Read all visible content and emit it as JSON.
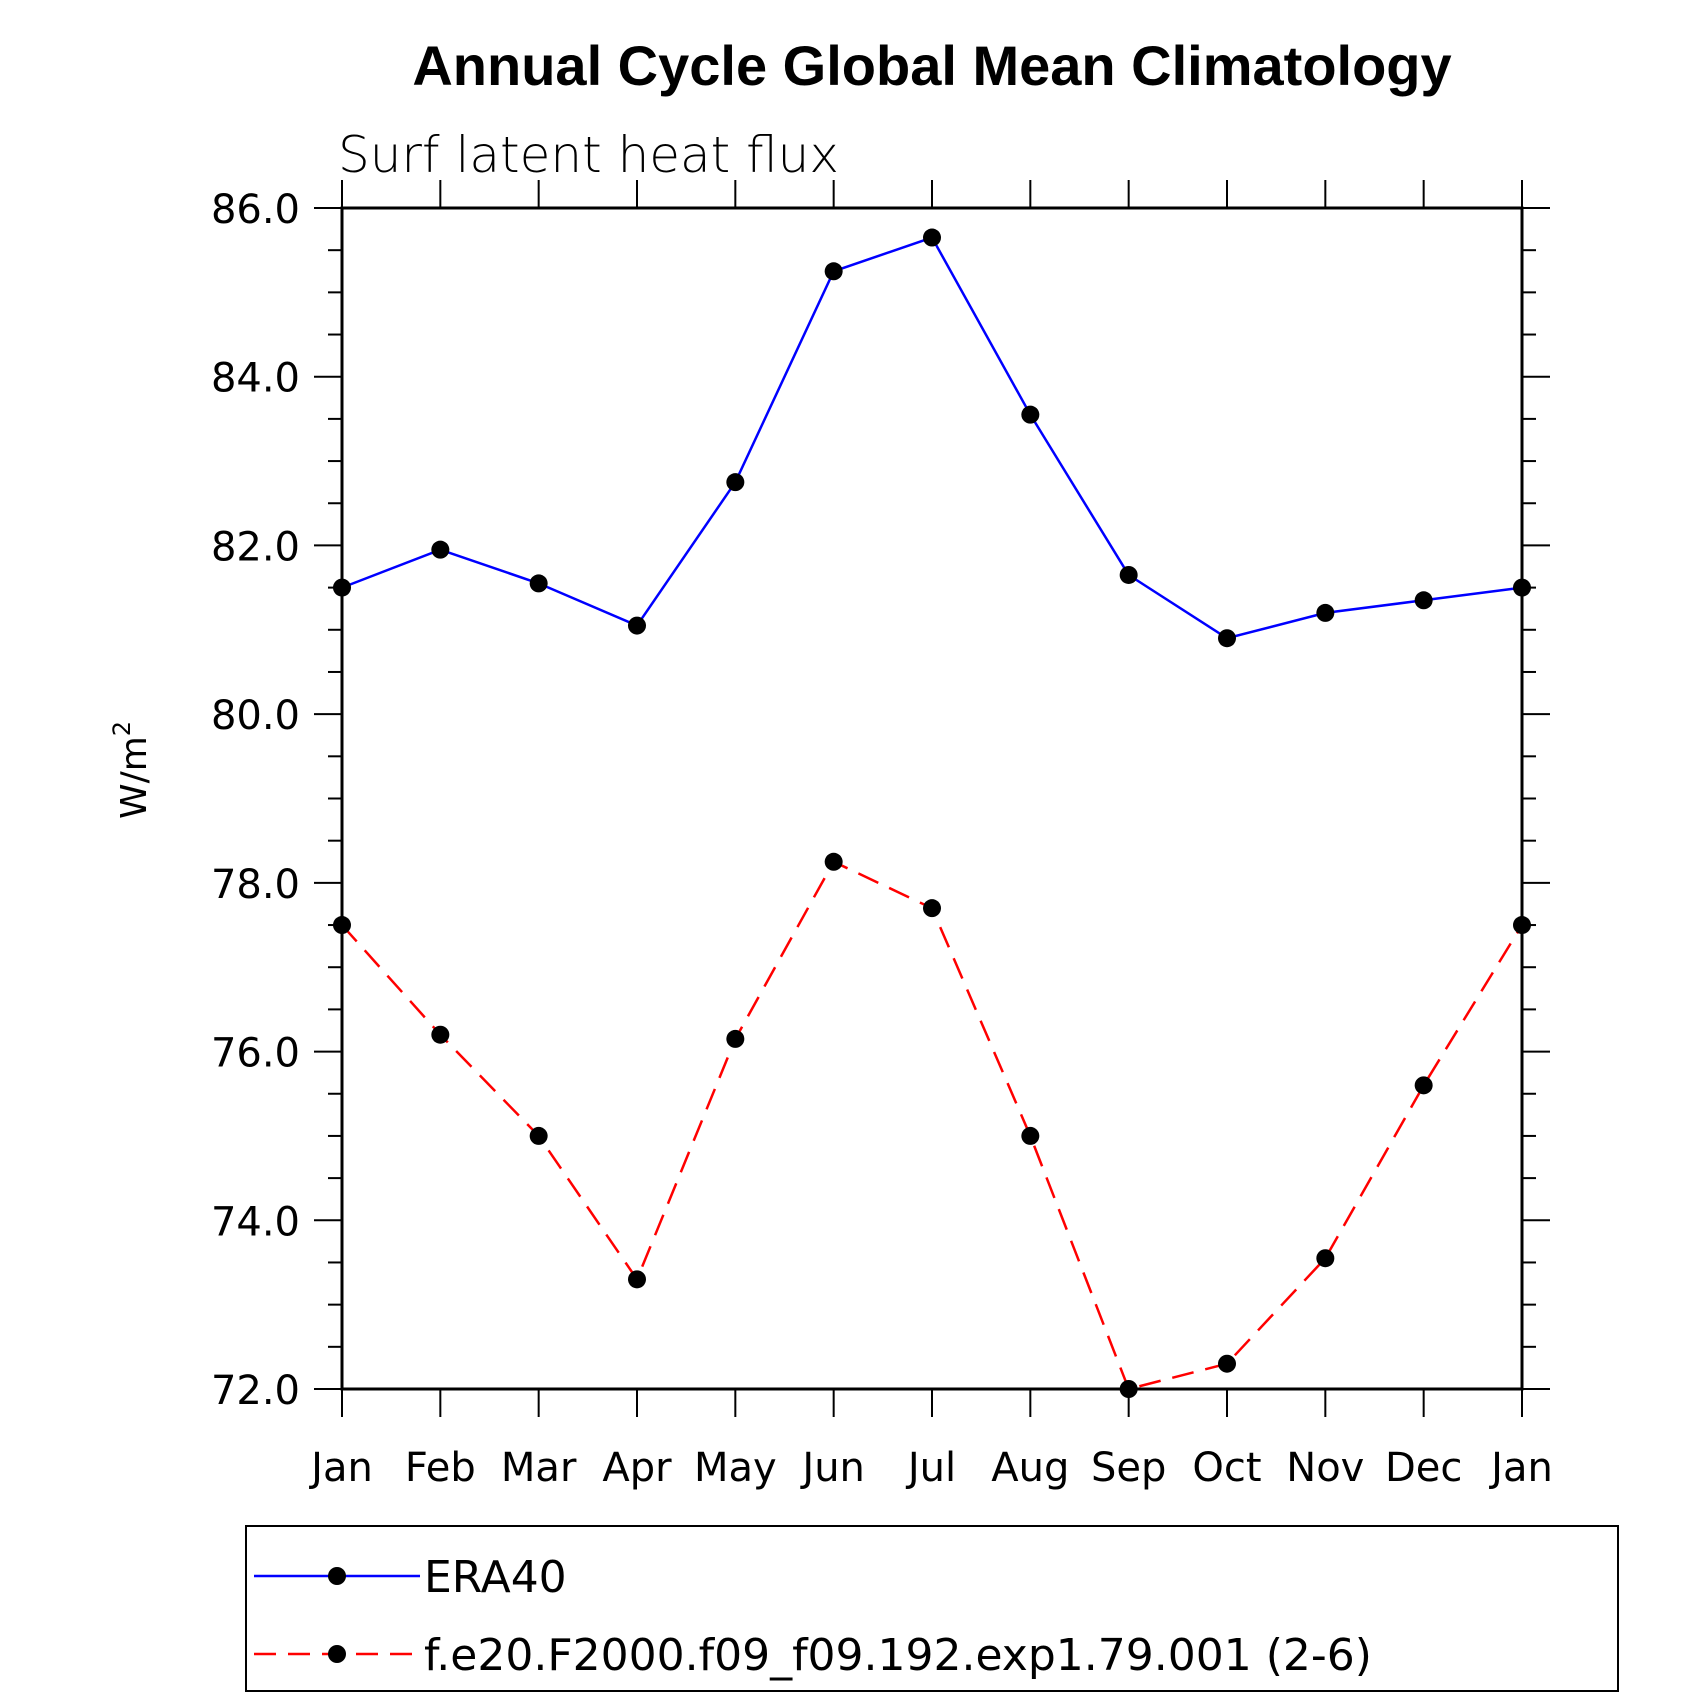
{
  "chart_data": {
    "type": "line",
    "title": "Annual Cycle Global Mean Climatology",
    "subtitle": "Surf latent heat flux",
    "ylabel_base": "W/m",
    "ylabel_sup": "2",
    "xlabel": "",
    "categories": [
      "Jan",
      "Feb",
      "Mar",
      "Apr",
      "May",
      "Jun",
      "Jul",
      "Aug",
      "Sep",
      "Oct",
      "Nov",
      "Dec",
      "Jan"
    ],
    "ylim": [
      72.0,
      86.0
    ],
    "yticks": [
      "72.0",
      "74.0",
      "76.0",
      "78.0",
      "80.0",
      "82.0",
      "84.0",
      "86.0"
    ],
    "ytick_values": [
      72,
      74,
      76,
      78,
      80,
      82,
      84,
      86
    ],
    "grid": false,
    "legend_position": "bottom",
    "series": [
      {
        "name": "ERA40",
        "color": "#0000ff",
        "dash": "solid",
        "values": [
          81.5,
          81.95,
          81.55,
          81.05,
          82.75,
          85.25,
          85.65,
          83.55,
          81.65,
          80.9,
          81.2,
          81.35,
          81.5
        ]
      },
      {
        "name": "f.e20.F2000.f09_f09.192.exp1.79.001 (2-6)",
        "color": "#ff0000",
        "dash": "dashed",
        "values": [
          77.5,
          76.2,
          75.0,
          73.3,
          76.15,
          78.25,
          77.7,
          75.0,
          72.0,
          72.3,
          73.55,
          75.6,
          77.5
        ]
      }
    ]
  }
}
